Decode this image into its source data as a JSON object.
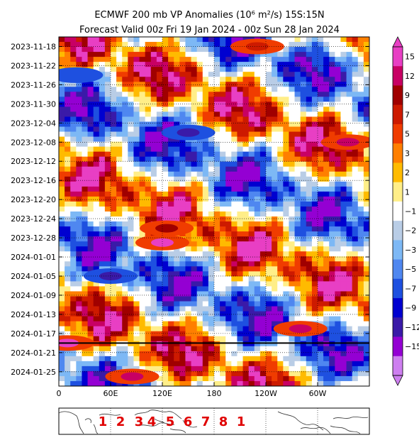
{
  "chart_data": {
    "type": "heatmap",
    "title": "ECMWF 200 mb VP Anomalies (10⁶ m²/s) 15S:15N",
    "subtitle": "Forecast Valid 00z Fri 19 Jan 2024 - 00z Sun 28 Jan 2024",
    "xlabel": "",
    "ylabel": "",
    "x_ticks": [
      "0",
      "60E",
      "120E",
      "180",
      "120W",
      "60W"
    ],
    "x_range_deg": [
      0,
      360
    ],
    "y_ticks": [
      "2023-11-18",
      "2023-11-22",
      "2023-11-26",
      "2023-11-30",
      "2023-12-04",
      "2023-12-08",
      "2023-12-12",
      "2023-12-16",
      "2023-12-20",
      "2023-12-24",
      "2023-12-28",
      "2024-01-01",
      "2024-01-05",
      "2024-01-09",
      "2024-01-13",
      "2024-01-17",
      "2024-01-21",
      "2024-01-25"
    ],
    "y_range": [
      "2023-11-16",
      "2024-01-28"
    ],
    "forecast_start_line": "2024-01-19",
    "grid": true,
    "colorbar": {
      "labels": [
        "15",
        "12",
        "9",
        "7",
        "5",
        "3",
        "2",
        "1",
        "−1",
        "−2",
        "−3",
        "−5",
        "−7",
        "−9",
        "−12",
        "−15"
      ],
      "colors": [
        "#e83fc4",
        "#c80064",
        "#a00000",
        "#cd1a00",
        "#f03c00",
        "#ff7f00",
        "#ffbb00",
        "#ffee88",
        "#ffffff",
        "#b9cde6",
        "#7db8f5",
        "#4f87f0",
        "#1e50e0",
        "#0000d0",
        "#3a1aa8",
        "#9400d3",
        "#ce7ff0"
      ]
    },
    "features": [
      {
        "date": "2023-11-18",
        "lon": 230,
        "sign": "positive"
      },
      {
        "date": "2023-11-24",
        "lon": 20,
        "sign": "negative"
      },
      {
        "date": "2023-12-06",
        "lon": 150,
        "sign": "negative",
        "peak": "-12"
      },
      {
        "date": "2023-12-08",
        "lon": 335,
        "sign": "positive",
        "peak": "12"
      },
      {
        "date": "2023-12-26",
        "lon": 125,
        "sign": "positive",
        "peak": "9"
      },
      {
        "date": "2023-12-29",
        "lon": 120,
        "sign": "positive",
        "peak": "15"
      },
      {
        "date": "2024-01-05",
        "lon": 60,
        "sign": "negative",
        "peak": "-12"
      },
      {
        "date": "2024-01-16",
        "lon": 280,
        "sign": "positive",
        "peak": "12"
      },
      {
        "date": "2024-01-19",
        "lon": 10,
        "sign": "positive",
        "peak": "15"
      },
      {
        "date": "2024-01-26",
        "lon": 85,
        "sign": "positive",
        "peak": "12"
      }
    ]
  },
  "mjo_map": {
    "phase_labels": [
      "1",
      "2",
      "3",
      "4",
      "5",
      "6",
      "7",
      "8",
      "1"
    ]
  }
}
